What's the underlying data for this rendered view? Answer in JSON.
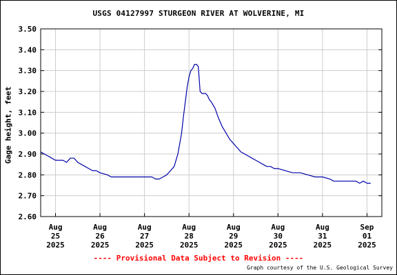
{
  "header": {
    "title": "USGS 04127997 STURGEON RIVER AT WOLVERINE, MI"
  },
  "footer": {
    "provisional": "---- Provisional Data Subject to Revision ----",
    "provisional_color": "#ff0000",
    "credit": "Graph courtesy of the U.S. Geological Survey"
  },
  "chart_data": {
    "type": "line",
    "title": "USGS 04127997 STURGEON RIVER AT WOLVERINE, MI",
    "xlabel": "",
    "ylabel": "Gage height, feet",
    "xlim": [
      "2025-08-24T16:00",
      "2025-09-01T08:00"
    ],
    "ylim": [
      2.6,
      3.5
    ],
    "yticks": [
      "2.60",
      "2.70",
      "2.80",
      "2.90",
      "3.00",
      "3.10",
      "3.20",
      "3.30",
      "3.40",
      "3.50"
    ],
    "xticks": [
      {
        "at": "2025-08-25T00:00",
        "label": [
          "Aug",
          "25",
          "2025"
        ]
      },
      {
        "at": "2025-08-26T00:00",
        "label": [
          "Aug",
          "26",
          "2025"
        ]
      },
      {
        "at": "2025-08-27T00:00",
        "label": [
          "Aug",
          "27",
          "2025"
        ]
      },
      {
        "at": "2025-08-28T00:00",
        "label": [
          "Aug",
          "28",
          "2025"
        ]
      },
      {
        "at": "2025-08-29T00:00",
        "label": [
          "Aug",
          "29",
          "2025"
        ]
      },
      {
        "at": "2025-08-30T00:00",
        "label": [
          "Aug",
          "30",
          "2025"
        ]
      },
      {
        "at": "2025-08-31T00:00",
        "label": [
          "Aug",
          "31",
          "2025"
        ]
      },
      {
        "at": "2025-09-01T00:00",
        "label": [
          "Sep",
          "01",
          "2025"
        ]
      }
    ],
    "grid": true,
    "legend": "none",
    "line_color": "#0000aa",
    "series": [
      {
        "x": [
          "2025-08-24T16:00",
          "2025-08-24T18:00",
          "2025-08-24T20:00",
          "2025-08-24T22:00",
          "2025-08-25T00:00",
          "2025-08-25T02:00",
          "2025-08-25T04:00",
          "2025-08-25T06:00",
          "2025-08-25T08:00",
          "2025-08-25T10:00",
          "2025-08-25T12:00",
          "2025-08-25T14:00",
          "2025-08-25T16:00",
          "2025-08-25T18:00",
          "2025-08-25T20:00",
          "2025-08-25T22:00",
          "2025-08-26T00:00",
          "2025-08-26T04:00",
          "2025-08-26T06:00",
          "2025-08-26T08:00",
          "2025-08-27T00:00",
          "2025-08-27T04:00",
          "2025-08-27T06:00",
          "2025-08-27T08:00",
          "2025-08-27T10:00",
          "2025-08-27T12:00",
          "2025-08-27T14:00",
          "2025-08-27T16:00",
          "2025-08-27T18:00",
          "2025-08-27T20:00",
          "2025-08-27T21:00",
          "2025-08-27T22:00",
          "2025-08-27T23:00",
          "2025-08-28T00:00",
          "2025-08-28T01:00",
          "2025-08-28T02:00",
          "2025-08-28T03:00",
          "2025-08-28T04:00",
          "2025-08-28T05:00",
          "2025-08-28T06:00",
          "2025-08-28T07:00",
          "2025-08-28T08:00",
          "2025-08-28T09:00",
          "2025-08-28T10:00",
          "2025-08-28T11:00",
          "2025-08-28T12:00",
          "2025-08-28T14:00",
          "2025-08-28T16:00",
          "2025-08-28T18:00",
          "2025-08-28T20:00",
          "2025-08-28T22:00",
          "2025-08-29T00:00",
          "2025-08-29T02:00",
          "2025-08-29T04:00",
          "2025-08-29T06:00",
          "2025-08-29T08:00",
          "2025-08-29T10:00",
          "2025-08-29T12:00",
          "2025-08-29T14:00",
          "2025-08-29T16:00",
          "2025-08-29T18:00",
          "2025-08-29T20:00",
          "2025-08-29T22:00",
          "2025-08-30T00:00",
          "2025-08-30T04:00",
          "2025-08-30T08:00",
          "2025-08-30T12:00",
          "2025-08-30T16:00",
          "2025-08-30T20:00",
          "2025-08-31T00:00",
          "2025-08-31T04:00",
          "2025-08-31T06:00",
          "2025-08-31T10:00",
          "2025-08-31T16:00",
          "2025-08-31T18:00",
          "2025-08-31T20:00",
          "2025-08-31T22:00",
          "2025-09-01T00:00",
          "2025-09-01T02:00"
        ],
        "values": [
          2.91,
          2.9,
          2.89,
          2.88,
          2.87,
          2.87,
          2.87,
          2.86,
          2.88,
          2.88,
          2.86,
          2.85,
          2.84,
          2.83,
          2.82,
          2.82,
          2.81,
          2.8,
          2.79,
          2.79,
          2.79,
          2.79,
          2.78,
          2.78,
          2.79,
          2.8,
          2.82,
          2.84,
          2.9,
          3.0,
          3.08,
          3.15,
          3.22,
          3.27,
          3.3,
          3.31,
          3.33,
          3.33,
          3.32,
          3.2,
          3.19,
          3.19,
          3.19,
          3.18,
          3.16,
          3.15,
          3.12,
          3.07,
          3.03,
          3.0,
          2.97,
          2.95,
          2.93,
          2.91,
          2.9,
          2.89,
          2.88,
          2.87,
          2.86,
          2.85,
          2.84,
          2.84,
          2.83,
          2.83,
          2.82,
          2.81,
          2.81,
          2.8,
          2.79,
          2.79,
          2.78,
          2.77,
          2.77,
          2.77,
          2.77,
          2.76,
          2.77,
          2.76,
          2.76
        ]
      }
    ]
  }
}
